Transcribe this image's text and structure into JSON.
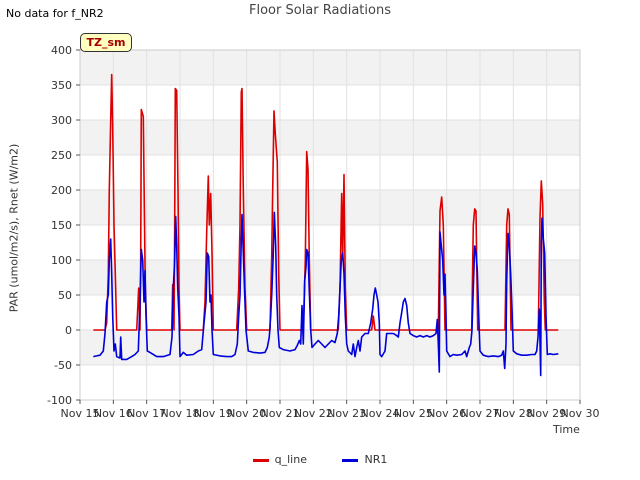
{
  "page": {
    "corner_note": "No data for f_NR2",
    "tz_badge": "TZ_sm"
  },
  "chart_data": {
    "type": "line",
    "title": "Floor Solar Radiations",
    "xlabel": "Time",
    "ylabel": "PAR (umol/m2/s), Rnet (W/m2)",
    "xlim": [
      15,
      30
    ],
    "ylim": [
      -100,
      400
    ],
    "x_ticks": [
      15,
      16,
      17,
      18,
      19,
      20,
      21,
      22,
      23,
      24,
      25,
      26,
      27,
      28,
      29,
      30
    ],
    "x_tick_labels": [
      "Nov 15",
      "Nov 16",
      "Nov 17",
      "Nov 18",
      "Nov 19",
      "Nov 20",
      "Nov 21",
      "Nov 22",
      "Nov 23",
      "Nov 24",
      "Nov 25",
      "Nov 26",
      "Nov 27",
      "Nov 28",
      "Nov 29",
      "Nov 30"
    ],
    "y_ticks": [
      -100,
      -50,
      0,
      50,
      100,
      150,
      200,
      250,
      300,
      350,
      400
    ],
    "grid": true,
    "legend_position": "bottom-center",
    "series": [
      {
        "name": "q_line",
        "color": "#dd0000",
        "points": [
          [
            15.4,
            0
          ],
          [
            15.75,
            0
          ],
          [
            15.8,
            10
          ],
          [
            15.85,
            80
          ],
          [
            15.88,
            200
          ],
          [
            15.92,
            300
          ],
          [
            15.95,
            365
          ],
          [
            15.98,
            290
          ],
          [
            16.02,
            150
          ],
          [
            16.06,
            80
          ],
          [
            16.1,
            0
          ],
          [
            16.7,
            0
          ],
          [
            16.76,
            60
          ],
          [
            16.8,
            0
          ],
          [
            16.82,
            100
          ],
          [
            16.84,
            315
          ],
          [
            16.87,
            310
          ],
          [
            16.9,
            305
          ],
          [
            16.93,
            180
          ],
          [
            16.96,
            60
          ],
          [
            17.0,
            0
          ],
          [
            17.75,
            0
          ],
          [
            17.78,
            65
          ],
          [
            17.82,
            0
          ],
          [
            17.84,
            150
          ],
          [
            17.86,
            345
          ],
          [
            17.9,
            342
          ],
          [
            17.94,
            200
          ],
          [
            17.97,
            60
          ],
          [
            18.0,
            0
          ],
          [
            18.7,
            0
          ],
          [
            18.75,
            40
          ],
          [
            18.8,
            140
          ],
          [
            18.85,
            220
          ],
          [
            18.88,
            150
          ],
          [
            18.92,
            195
          ],
          [
            18.96,
            110
          ],
          [
            19.0,
            0
          ],
          [
            19.7,
            0
          ],
          [
            19.76,
            60
          ],
          [
            19.8,
            150
          ],
          [
            19.84,
            340
          ],
          [
            19.86,
            345
          ],
          [
            19.9,
            200
          ],
          [
            19.95,
            60
          ],
          [
            20.0,
            0
          ],
          [
            20.7,
            0
          ],
          [
            20.75,
            105
          ],
          [
            20.78,
            200
          ],
          [
            20.82,
            313
          ],
          [
            20.86,
            280
          ],
          [
            20.92,
            240
          ],
          [
            20.96,
            80
          ],
          [
            21.0,
            0
          ],
          [
            21.7,
            0
          ],
          [
            21.76,
            100
          ],
          [
            21.8,
            255
          ],
          [
            21.84,
            230
          ],
          [
            21.88,
            100
          ],
          [
            21.92,
            0
          ],
          [
            22.75,
            0
          ],
          [
            22.8,
            60
          ],
          [
            22.85,
            195
          ],
          [
            22.88,
            100
          ],
          [
            22.92,
            222
          ],
          [
            22.96,
            60
          ],
          [
            23.0,
            0
          ],
          [
            23.75,
            0
          ],
          [
            23.8,
            20
          ],
          [
            23.85,
            0
          ],
          [
            25.75,
            0
          ],
          [
            25.8,
            170
          ],
          [
            25.85,
            190
          ],
          [
            25.9,
            150
          ],
          [
            25.95,
            0
          ],
          [
            26.75,
            0
          ],
          [
            26.8,
            150
          ],
          [
            26.84,
            173
          ],
          [
            26.88,
            170
          ],
          [
            26.93,
            0
          ],
          [
            27.75,
            0
          ],
          [
            27.8,
            150
          ],
          [
            27.84,
            173
          ],
          [
            27.88,
            165
          ],
          [
            27.93,
            0
          ],
          [
            28.75,
            0
          ],
          [
            28.8,
            160
          ],
          [
            28.84,
            213
          ],
          [
            28.88,
            180
          ],
          [
            28.93,
            40
          ],
          [
            28.96,
            0
          ],
          [
            29.35,
            0
          ]
        ]
      },
      {
        "name": "NR1",
        "color": "#0000dd",
        "points": [
          [
            15.4,
            -38
          ],
          [
            15.5,
            -37
          ],
          [
            15.6,
            -36
          ],
          [
            15.7,
            -30
          ],
          [
            15.75,
            -5
          ],
          [
            15.8,
            40
          ],
          [
            15.85,
            50
          ],
          [
            15.88,
            100
          ],
          [
            15.92,
            130
          ],
          [
            15.95,
            80
          ],
          [
            15.98,
            20
          ],
          [
            16.02,
            -30
          ],
          [
            16.06,
            -20
          ],
          [
            16.1,
            -38
          ],
          [
            16.2,
            -40
          ],
          [
            16.22,
            -10
          ],
          [
            16.25,
            -42
          ],
          [
            16.4,
            -42
          ],
          [
            16.55,
            -38
          ],
          [
            16.65,
            -35
          ],
          [
            16.75,
            -30
          ],
          [
            16.8,
            40
          ],
          [
            16.84,
            115
          ],
          [
            16.88,
            100
          ],
          [
            16.92,
            40
          ],
          [
            16.95,
            85
          ],
          [
            16.98,
            20
          ],
          [
            17.02,
            -30
          ],
          [
            17.1,
            -32
          ],
          [
            17.3,
            -38
          ],
          [
            17.5,
            -38
          ],
          [
            17.7,
            -35
          ],
          [
            17.76,
            -10
          ],
          [
            17.8,
            60
          ],
          [
            17.84,
            100
          ],
          [
            17.87,
            162
          ],
          [
            17.9,
            120
          ],
          [
            17.93,
            60
          ],
          [
            17.97,
            20
          ],
          [
            18.0,
            -38
          ],
          [
            18.1,
            -32
          ],
          [
            18.2,
            -36
          ],
          [
            18.4,
            -35
          ],
          [
            18.55,
            -30
          ],
          [
            18.65,
            -28
          ],
          [
            18.72,
            10
          ],
          [
            18.78,
            40
          ],
          [
            18.82,
            110
          ],
          [
            18.86,
            105
          ],
          [
            18.9,
            40
          ],
          [
            18.93,
            50
          ],
          [
            18.96,
            0
          ],
          [
            19.0,
            -35
          ],
          [
            19.2,
            -37
          ],
          [
            19.4,
            -38
          ],
          [
            19.55,
            -38
          ],
          [
            19.65,
            -35
          ],
          [
            19.72,
            -20
          ],
          [
            19.76,
            20
          ],
          [
            19.8,
            50
          ],
          [
            19.84,
            130
          ],
          [
            19.86,
            165
          ],
          [
            19.9,
            110
          ],
          [
            19.94,
            50
          ],
          [
            19.98,
            0
          ],
          [
            20.05,
            -30
          ],
          [
            20.2,
            -32
          ],
          [
            20.4,
            -33
          ],
          [
            20.55,
            -32
          ],
          [
            20.62,
            -25
          ],
          [
            20.68,
            -10
          ],
          [
            20.72,
            20
          ],
          [
            20.75,
            50
          ],
          [
            20.8,
            110
          ],
          [
            20.83,
            168
          ],
          [
            20.87,
            120
          ],
          [
            20.9,
            50
          ],
          [
            20.94,
            0
          ],
          [
            20.98,
            -25
          ],
          [
            21.1,
            -28
          ],
          [
            21.3,
            -30
          ],
          [
            21.45,
            -28
          ],
          [
            21.52,
            -22
          ],
          [
            21.58,
            -15
          ],
          [
            21.62,
            -20
          ],
          [
            21.66,
            35
          ],
          [
            21.7,
            -20
          ],
          [
            21.74,
            70
          ],
          [
            21.78,
            90
          ],
          [
            21.8,
            115
          ],
          [
            21.84,
            110
          ],
          [
            21.88,
            55
          ],
          [
            21.92,
            0
          ],
          [
            21.96,
            -25
          ],
          [
            22.05,
            -20
          ],
          [
            22.15,
            -15
          ],
          [
            22.25,
            -20
          ],
          [
            22.35,
            -25
          ],
          [
            22.45,
            -20
          ],
          [
            22.55,
            -15
          ],
          [
            22.65,
            -18
          ],
          [
            22.72,
            -5
          ],
          [
            22.76,
            20
          ],
          [
            22.8,
            60
          ],
          [
            22.84,
            100
          ],
          [
            22.88,
            110
          ],
          [
            22.92,
            80
          ],
          [
            22.96,
            20
          ],
          [
            23.0,
            -20
          ],
          [
            23.05,
            -30
          ],
          [
            23.15,
            -35
          ],
          [
            23.2,
            -20
          ],
          [
            23.25,
            -38
          ],
          [
            23.3,
            -25
          ],
          [
            23.35,
            -15
          ],
          [
            23.4,
            -30
          ],
          [
            23.45,
            -10
          ],
          [
            23.55,
            -5
          ],
          [
            23.65,
            -5
          ],
          [
            23.72,
            10
          ],
          [
            23.78,
            30
          ],
          [
            23.82,
            50
          ],
          [
            23.86,
            60
          ],
          [
            23.9,
            50
          ],
          [
            23.94,
            40
          ],
          [
            23.98,
            10
          ],
          [
            24.0,
            -35
          ],
          [
            24.05,
            -38
          ],
          [
            24.15,
            -30
          ],
          [
            24.2,
            -5
          ],
          [
            24.3,
            -5
          ],
          [
            24.4,
            -5
          ],
          [
            24.5,
            -8
          ],
          [
            24.55,
            -10
          ],
          [
            24.6,
            10
          ],
          [
            24.65,
            25
          ],
          [
            24.7,
            40
          ],
          [
            24.75,
            45
          ],
          [
            24.8,
            35
          ],
          [
            24.85,
            10
          ],
          [
            24.9,
            -5
          ],
          [
            25.0,
            -8
          ],
          [
            25.1,
            -10
          ],
          [
            25.2,
            -8
          ],
          [
            25.3,
            -10
          ],
          [
            25.4,
            -8
          ],
          [
            25.5,
            -10
          ],
          [
            25.6,
            -8
          ],
          [
            25.68,
            -5
          ],
          [
            25.72,
            15
          ],
          [
            25.75,
            -20
          ],
          [
            25.78,
            -60
          ],
          [
            25.8,
            140
          ],
          [
            25.84,
            120
          ],
          [
            25.88,
            100
          ],
          [
            25.92,
            50
          ],
          [
            25.95,
            80
          ],
          [
            25.98,
            20
          ],
          [
            26.0,
            -30
          ],
          [
            26.1,
            -38
          ],
          [
            26.2,
            -35
          ],
          [
            26.3,
            -36
          ],
          [
            26.45,
            -35
          ],
          [
            26.55,
            -30
          ],
          [
            26.6,
            -38
          ],
          [
            26.68,
            -25
          ],
          [
            26.72,
            -20
          ],
          [
            26.76,
            0
          ],
          [
            26.8,
            60
          ],
          [
            26.84,
            120
          ],
          [
            26.88,
            110
          ],
          [
            26.92,
            85
          ],
          [
            26.96,
            20
          ],
          [
            27.0,
            -30
          ],
          [
            27.1,
            -36
          ],
          [
            27.25,
            -38
          ],
          [
            27.4,
            -37
          ],
          [
            27.55,
            -38
          ],
          [
            27.65,
            -36
          ],
          [
            27.7,
            -30
          ],
          [
            27.74,
            -55
          ],
          [
            27.78,
            -20
          ],
          [
            27.8,
            70
          ],
          [
            27.84,
            138
          ],
          [
            27.88,
            120
          ],
          [
            27.92,
            80
          ],
          [
            27.96,
            30
          ],
          [
            28.0,
            -30
          ],
          [
            28.1,
            -34
          ],
          [
            28.25,
            -36
          ],
          [
            28.4,
            -36
          ],
          [
            28.55,
            -35
          ],
          [
            28.65,
            -35
          ],
          [
            28.7,
            -30
          ],
          [
            28.74,
            -10
          ],
          [
            28.78,
            30
          ],
          [
            28.82,
            -65
          ],
          [
            28.84,
            120
          ],
          [
            28.86,
            160
          ],
          [
            28.9,
            130
          ],
          [
            28.94,
            110
          ],
          [
            28.98,
            20
          ],
          [
            29.02,
            -35
          ],
          [
            29.1,
            -34
          ],
          [
            29.2,
            -35
          ],
          [
            29.35,
            -34
          ]
        ]
      }
    ]
  }
}
